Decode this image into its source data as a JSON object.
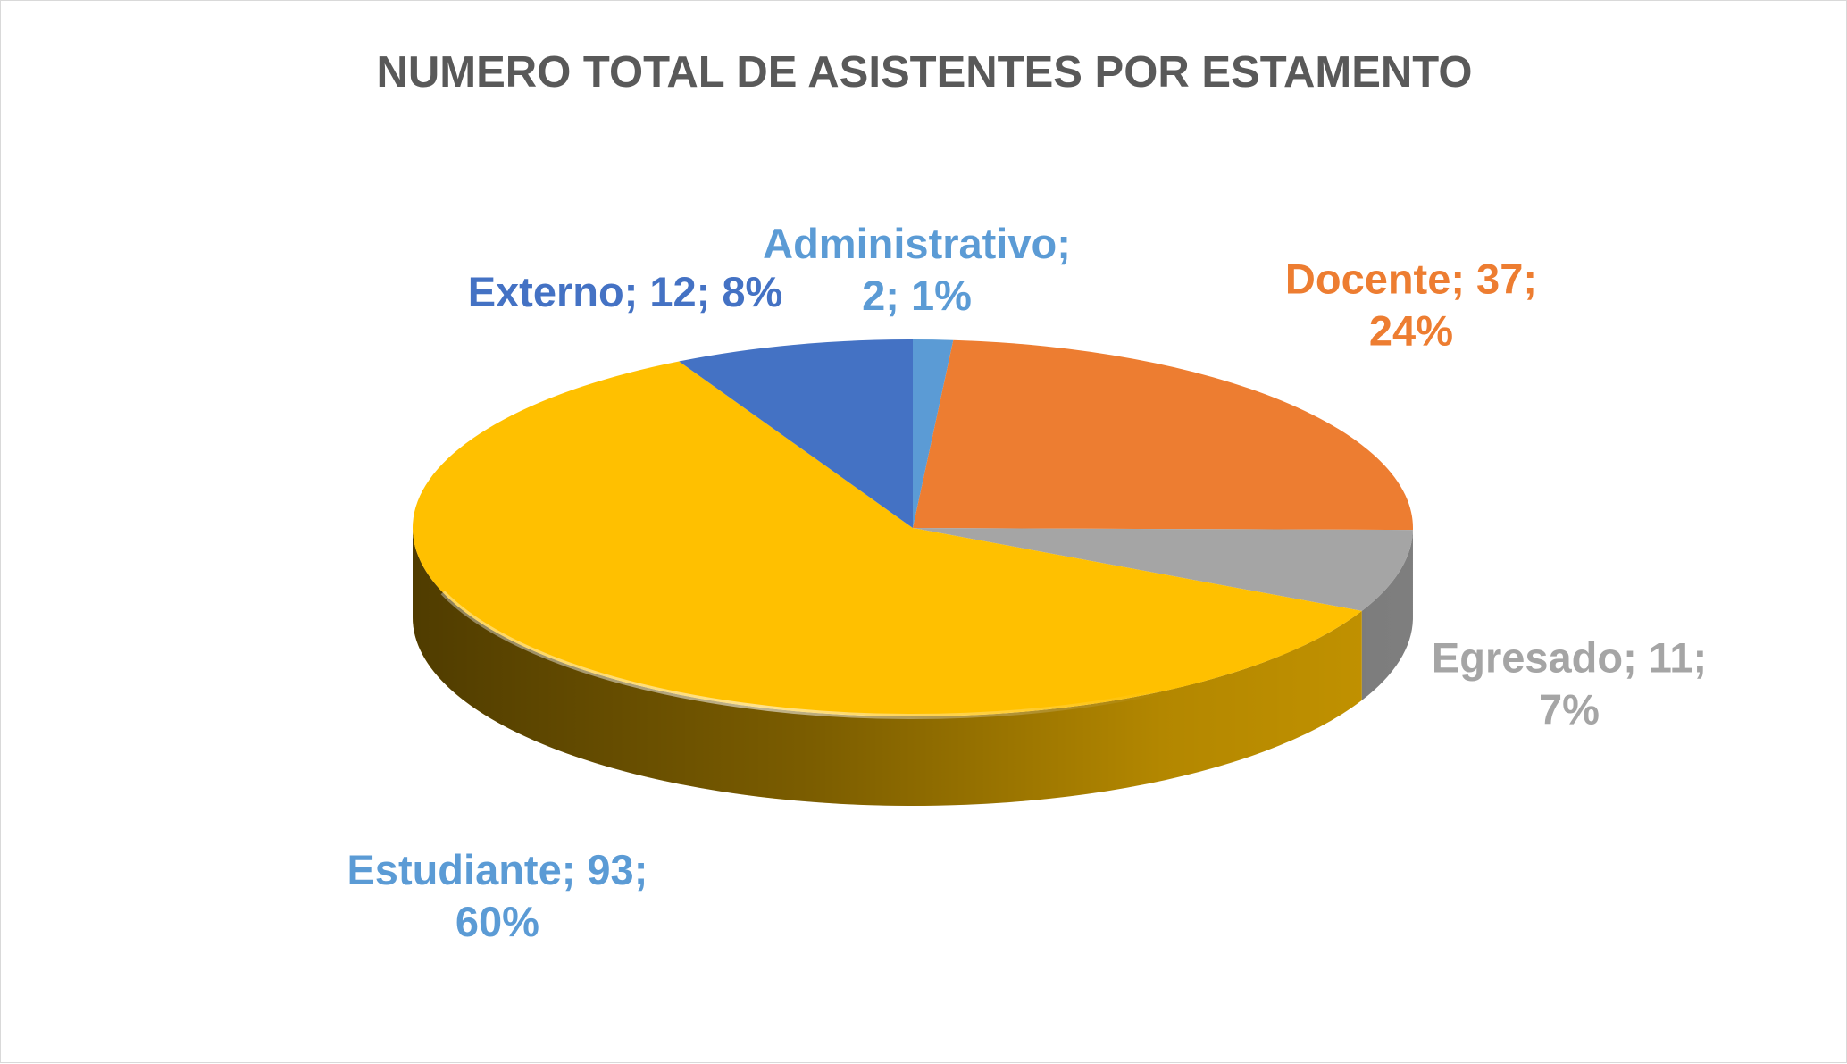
{
  "chart_data": {
    "type": "pie",
    "title": "NUMERO TOTAL DE ASISTENTES POR ESTAMENTO",
    "categories": [
      "Administrativo",
      "Docente",
      "Egresado",
      "Estudiante",
      "Externo"
    ],
    "values": [
      2,
      37,
      11,
      93,
      12
    ],
    "percentages": [
      1,
      24,
      7,
      60,
      8
    ],
    "colors": [
      "#5B9BD5",
      "#ED7D31",
      "#A5A5A5",
      "#FFC000",
      "#4472C4"
    ],
    "label_colors": [
      "#5B9BD5",
      "#ED7D31",
      "#A5A5A5",
      "#5B9BD5",
      "#4472C4"
    ],
    "data_labels": [
      [
        "Administrativo;",
        "2; 1%"
      ],
      [
        "Docente; 37;",
        "24%"
      ],
      [
        "Egresado; 11;",
        "7%"
      ],
      [
        "Estudiante; 93;",
        "60%"
      ],
      [
        "Externo; 12; 8%"
      ]
    ],
    "style": "3d",
    "legend": "none"
  }
}
